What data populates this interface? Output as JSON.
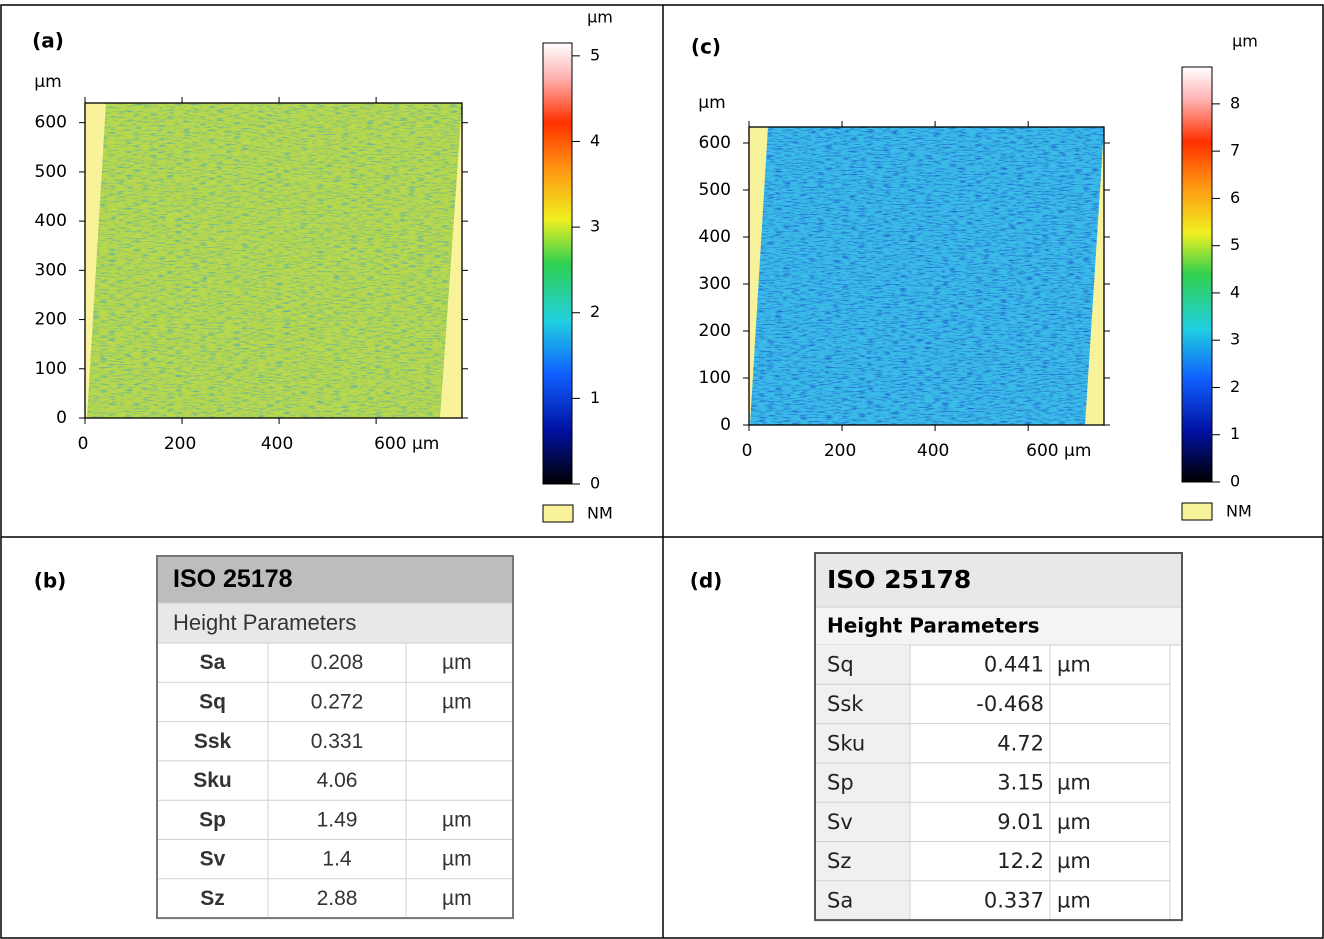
{
  "panels": [
    {
      "label": "(a)",
      "map": {
        "y_unit": "µm",
        "fill": "#b9d84c",
        "speckle": "#2f9fd0",
        "nm_color": "#f8f29a",
        "xlim": [
          0,
          777
        ],
        "ylim": [
          0,
          640
        ],
        "xticks": [
          0,
          200,
          400,
          {
            "value": 600,
            "label": "600 µm"
          }
        ],
        "yticks": [
          0,
          100,
          200,
          300,
          400,
          500,
          600
        ],
        "colorbar": {
          "unit": "µm",
          "lim": [
            0,
            5.15
          ],
          "ticks": [
            0,
            1,
            2,
            3,
            4,
            5
          ]
        },
        "nm_label": "NM"
      }
    },
    {
      "label": "(b)",
      "table": {
        "title": "ISO 25178",
        "subtitle": "Height Parameters",
        "rows": [
          [
            "Sa",
            0.208,
            "µm"
          ],
          [
            "Sq",
            0.272,
            "µm"
          ],
          [
            "Ssk",
            0.331
          ],
          [
            "Sku",
            4.06
          ],
          [
            "Sp",
            1.49,
            "µm"
          ],
          [
            "Sv",
            1.4,
            "µm"
          ],
          [
            "Sz",
            2.88,
            "µm"
          ]
        ]
      }
    },
    {
      "label": "(c)",
      "map": {
        "y_unit": "µm",
        "fill": "#3bbbe8",
        "speckle": "#1030c0",
        "nm_color": "#f8f29a",
        "xlim": [
          0,
          763
        ],
        "ylim": [
          0,
          634
        ],
        "xticks": [
          0,
          200,
          400,
          {
            "value": 600,
            "label": "600 µm"
          }
        ],
        "yticks": [
          0,
          100,
          200,
          300,
          400,
          500,
          600
        ],
        "colorbar": {
          "unit": "µm",
          "lim": [
            0,
            8.78
          ],
          "ticks": [
            0,
            1,
            2,
            3,
            4,
            5,
            6,
            7,
            8
          ]
        },
        "nm_label": "NM"
      }
    },
    {
      "label": "(d)",
      "table": {
        "title": "ISO 25178",
        "subtitle": "Height Parameters",
        "rows": [
          [
            "Sq",
            0.441,
            "µm"
          ],
          [
            "Ssk",
            -0.468
          ],
          [
            "Sku",
            4.72
          ],
          [
            "Sp",
            3.15,
            "µm"
          ],
          [
            "Sv",
            9.01,
            "µm"
          ],
          [
            "Sz",
            12.2,
            "µm"
          ],
          [
            "Sa",
            0.337,
            "µm"
          ]
        ]
      }
    }
  ]
}
